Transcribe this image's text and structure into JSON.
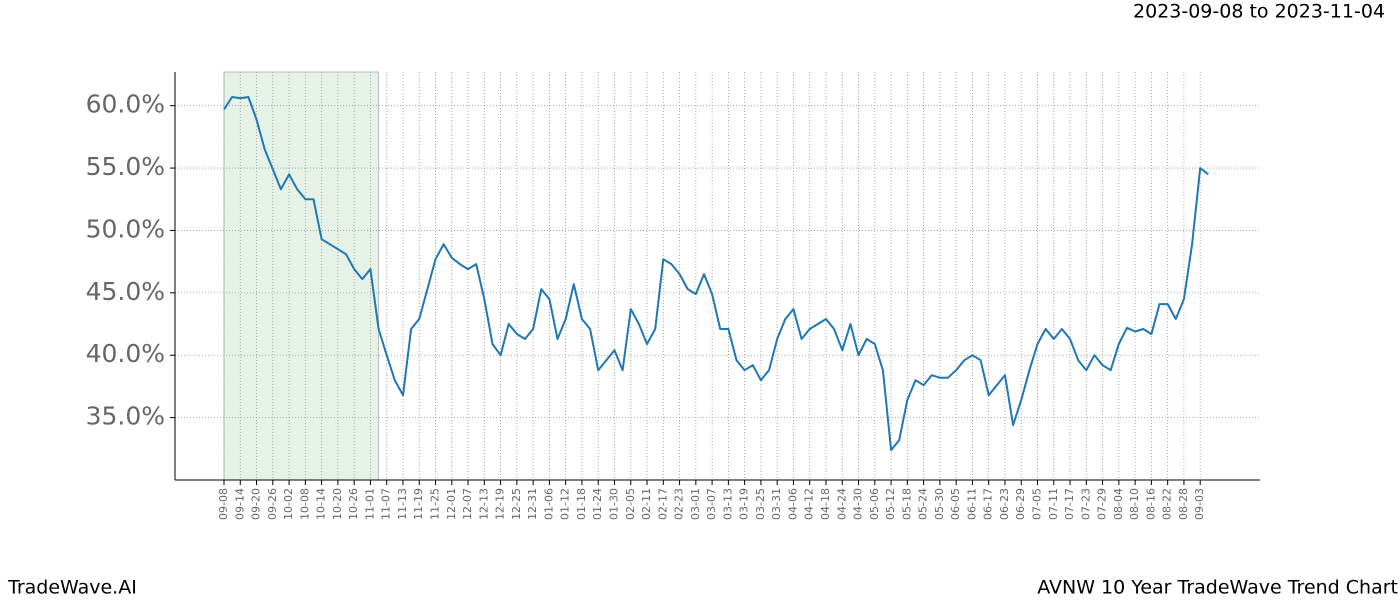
{
  "header": {
    "title": "2023-09-08 to 2023-11-04"
  },
  "footer": {
    "left": "TradeWave.AI",
    "right": "AVNW 10 Year TradeWave Trend Chart"
  },
  "chart_data": {
    "type": "line",
    "categories": [
      "09-08",
      null,
      "09-14",
      null,
      "09-20",
      null,
      "09-26",
      null,
      "10-02",
      null,
      "10-08",
      null,
      "10-14",
      null,
      "10-20",
      null,
      "10-26",
      null,
      "11-01",
      null,
      "11-07",
      null,
      "11-13",
      null,
      "11-19",
      null,
      "11-25",
      null,
      "12-01",
      null,
      "12-07",
      null,
      "12-13",
      null,
      "12-19",
      null,
      "12-25",
      null,
      "12-31",
      null,
      "01-06",
      null,
      "01-12",
      null,
      "01-18",
      null,
      "01-24",
      null,
      "01-30",
      null,
      "02-05",
      null,
      "02-11",
      null,
      "02-17",
      null,
      "02-23",
      null,
      "03-01",
      null,
      "03-07",
      null,
      "03-13",
      null,
      "03-19",
      null,
      "03-25",
      null,
      "03-31",
      null,
      "04-06",
      null,
      "04-12",
      null,
      "04-18",
      null,
      "04-24",
      null,
      "04-30",
      null,
      "05-06",
      null,
      "05-12",
      null,
      "05-18",
      null,
      "05-24",
      null,
      "05-30",
      null,
      "06-05",
      null,
      "06-11",
      null,
      "06-17",
      null,
      "06-23",
      null,
      "06-29",
      null,
      "07-05",
      null,
      "07-11",
      null,
      "07-17",
      null,
      "07-23",
      null,
      "07-29",
      null,
      "08-04",
      null,
      "08-10",
      null,
      "08-16",
      null,
      "08-22",
      null,
      "08-28",
      null,
      "09-03",
      null
    ],
    "series": [
      {
        "color": "#1f77b4",
        "values": [
          59.7,
          60.7,
          60.6,
          60.7,
          58.9,
          56.5,
          54.9,
          53.3,
          54.5,
          53.3,
          52.5,
          52.5,
          49.3,
          48.9,
          48.5,
          48.1,
          46.9,
          46.1,
          46.9,
          42.1,
          40.0,
          38.0,
          36.8,
          42.1,
          42.9,
          45.3,
          47.7,
          48.9,
          47.8,
          47.3,
          46.9,
          47.3,
          44.5,
          40.9,
          40.0,
          42.5,
          41.7,
          41.3,
          42.1,
          45.3,
          44.5,
          41.3,
          42.9,
          45.7,
          42.9,
          42.1,
          38.8,
          39.6,
          40.4,
          38.8,
          43.7,
          42.5,
          40.9,
          42.1,
          47.7,
          47.3,
          46.5,
          45.3,
          44.9,
          46.5,
          44.9,
          42.1,
          42.1,
          39.6,
          38.8,
          39.2,
          38.0,
          38.8,
          41.3,
          42.9,
          43.7,
          41.3,
          42.1,
          42.5,
          42.9,
          42.1,
          40.4,
          42.5,
          40.0,
          41.3,
          40.9,
          38.8,
          32.4,
          33.2,
          36.4,
          38.0,
          37.6,
          38.4,
          38.2,
          38.2,
          38.8,
          39.6,
          40.0,
          39.6,
          36.8,
          37.6,
          38.4,
          34.4,
          36.4,
          38.8,
          40.9,
          42.1,
          41.3,
          42.1,
          41.3,
          39.6,
          38.8,
          40.0,
          39.2,
          38.8,
          40.9,
          42.2,
          41.9,
          42.1,
          41.7,
          44.1,
          44.1,
          42.9,
          44.5,
          48.9,
          55.0,
          54.5
        ]
      }
    ],
    "ylim": [
      30.0,
      62.7
    ],
    "yticks": [
      {
        "value": 35,
        "label": "35.0%"
      },
      {
        "value": 40,
        "label": "40.0%"
      },
      {
        "value": 45,
        "label": "45.0%"
      },
      {
        "value": 50,
        "label": "50.0%"
      },
      {
        "value": 55,
        "label": "55.0%"
      },
      {
        "value": 60,
        "label": "60.0%"
      }
    ],
    "grid": true,
    "shade": {
      "from": 0,
      "to": 19,
      "color": "#e6f2e6"
    }
  }
}
